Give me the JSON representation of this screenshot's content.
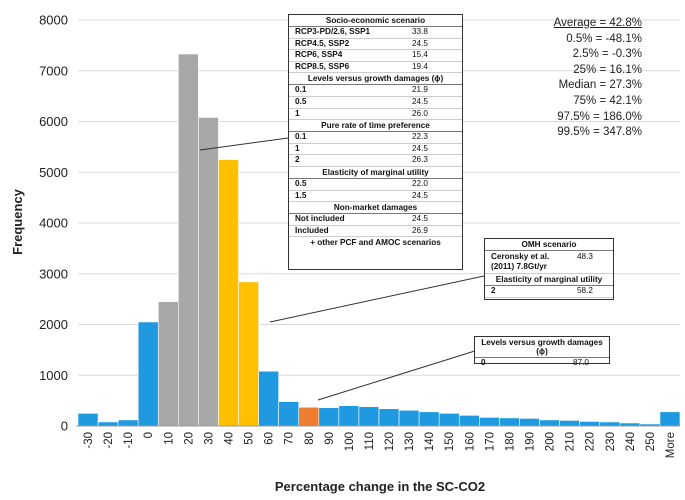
{
  "chart_data": {
    "type": "bar",
    "title": "",
    "xlabel": "Percentage change in the SC-CO2",
    "ylabel": "Frequency",
    "ylim": [
      0,
      8000
    ],
    "yticks": [
      0,
      1000,
      2000,
      3000,
      4000,
      5000,
      6000,
      7000,
      8000
    ],
    "categories": [
      "-30",
      "-20",
      "-10",
      "0",
      "10",
      "20",
      "30",
      "40",
      "50",
      "60",
      "70",
      "80",
      "90",
      "100",
      "110",
      "120",
      "130",
      "140",
      "150",
      "160",
      "170",
      "180",
      "190",
      "200",
      "210",
      "220",
      "230",
      "240",
      "250",
      "More"
    ],
    "values": [
      250,
      80,
      120,
      2050,
      2450,
      7330,
      6080,
      5250,
      2840,
      1080,
      480,
      370,
      360,
      400,
      380,
      340,
      310,
      280,
      250,
      210,
      170,
      160,
      150,
      120,
      110,
      90,
      80,
      60,
      40,
      280
    ],
    "bar_colors": [
      "#1f9ae0",
      "#1f9ae0",
      "#1f9ae0",
      "#1f9ae0",
      "#a8a8a8",
      "#a8a8a8",
      "#a8a8a8",
      "#ffc000",
      "#ffc000",
      "#1f9ae0",
      "#1f9ae0",
      "#ed7d31",
      "#1f9ae0",
      "#1f9ae0",
      "#1f9ae0",
      "#1f9ae0",
      "#1f9ae0",
      "#1f9ae0",
      "#1f9ae0",
      "#1f9ae0",
      "#1f9ae0",
      "#1f9ae0",
      "#1f9ae0",
      "#1f9ae0",
      "#1f9ae0",
      "#1f9ae0",
      "#1f9ae0",
      "#1f9ae0",
      "#1f9ae0",
      "#1f9ae0"
    ],
    "grid": true
  },
  "stats": {
    "average": "Average = 42.8%",
    "lines": [
      "0.5% = -48.1%",
      "2.5% = -0.3%",
      "25% = 16.1%",
      "Median = 27.3%",
      "75% = 42.1%",
      "97.5% = 186.0%",
      "99.5% = 347.8%"
    ]
  },
  "callout_main": {
    "sections": [
      {
        "title": "Socio-economic scenario",
        "rows": [
          [
            "RCP3-PD/2.6, SSP1",
            "33.8"
          ],
          [
            "RCP4.5, SSP2",
            "24.5"
          ],
          [
            "RCP6, SSP4",
            "15.4"
          ],
          [
            "RCP8.5, SSP6",
            "19.4"
          ]
        ]
      },
      {
        "title": "Levels versus growth damages (ϕ)",
        "rows": [
          [
            "0.1",
            "21.9"
          ],
          [
            "0.5",
            "24.5"
          ],
          [
            "1",
            "26.0"
          ]
        ]
      },
      {
        "title": "Pure rate of time preference",
        "rows": [
          [
            "0.1",
            "22.3"
          ],
          [
            "1",
            "24.5"
          ],
          [
            "2",
            "26.3"
          ]
        ]
      },
      {
        "title": "Elasticity of marginal utility",
        "rows": [
          [
            "0.5",
            "22.0"
          ],
          [
            "1.5",
            "24.5"
          ]
        ]
      },
      {
        "title": "Non-market damages",
        "rows": [
          [
            "Not included",
            "24.5"
          ],
          [
            "Included",
            "26.9"
          ]
        ]
      }
    ],
    "footer": "+ other PCF and AMOC scenarios"
  },
  "callout_omh": {
    "title": "OMH scenario",
    "row1_label": "Ceronsky et al. (2011) 7.8Gt/yr",
    "row1_value": "48.3",
    "section2_title": "Elasticity of marginal utility",
    "row2_label": "2",
    "row2_value": "58.2"
  },
  "callout_levels": {
    "title": "Levels versus growth damages (ϕ)",
    "row_label": "0",
    "row_value": "87.0"
  }
}
